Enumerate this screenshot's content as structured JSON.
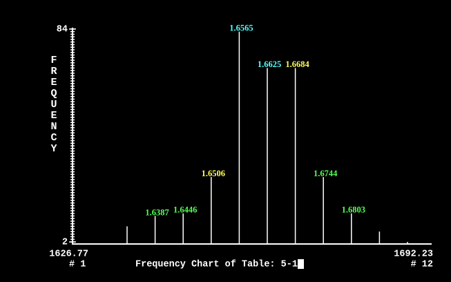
{
  "chart_data": {
    "type": "bar",
    "title": "Frequency Chart of Table: 5-1",
    "y_label": "FREQUENCY",
    "categories": [
      null,
      "1.6387",
      "1.6446",
      "1.6506",
      "1.6565",
      "1.6625",
      "1.6684",
      "1.6744",
      "1.6803",
      null,
      null
    ],
    "label_colors": [
      null,
      "#55ff55",
      "#55ff55",
      "#ffff55",
      "#55ffff",
      "#55ffff",
      "#ffff55",
      "#55ff55",
      "#55ff55",
      null,
      null
    ],
    "values": [
      8,
      12,
      13,
      27,
      83,
      69,
      69,
      27,
      13,
      6,
      2
    ],
    "color": "#ffffff",
    "xlim": [
      1626.77,
      1692.23
    ],
    "x_end_labels": [
      "# 1",
      "# 12"
    ],
    "ylim": [
      2,
      84
    ],
    "yticks": [
      84,
      2
    ],
    "minor_tick_step": 1
  }
}
